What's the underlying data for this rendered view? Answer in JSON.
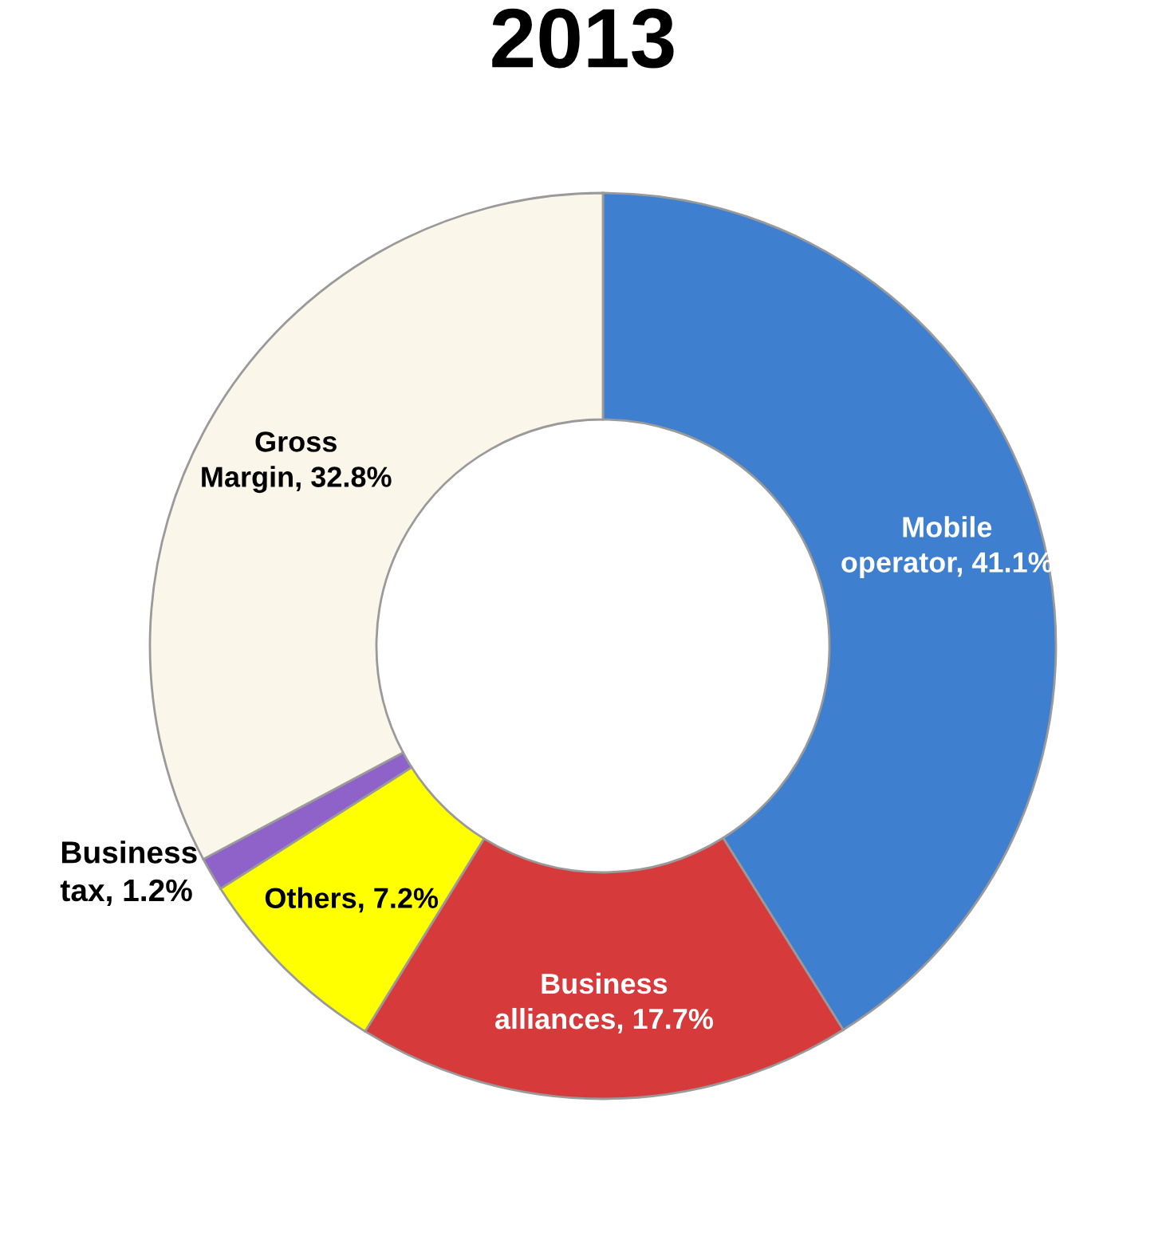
{
  "chart_data": {
    "type": "donut",
    "title": "2013",
    "categories": [
      "Mobile\noperator",
      "Business\nalliances",
      "Others",
      "Business\ntax",
      "Gross\nMargin"
    ],
    "values": [
      41.1,
      17.7,
      7.2,
      1.2,
      32.8
    ],
    "value_labels": [
      "41.1%",
      "17.7%",
      "7.2%",
      "1.2%",
      "32.8%"
    ],
    "colors": [
      "#3f7fd0",
      "#d63a3a",
      "#ffff00",
      "#8e62c8",
      "#faf6ea"
    ]
  }
}
